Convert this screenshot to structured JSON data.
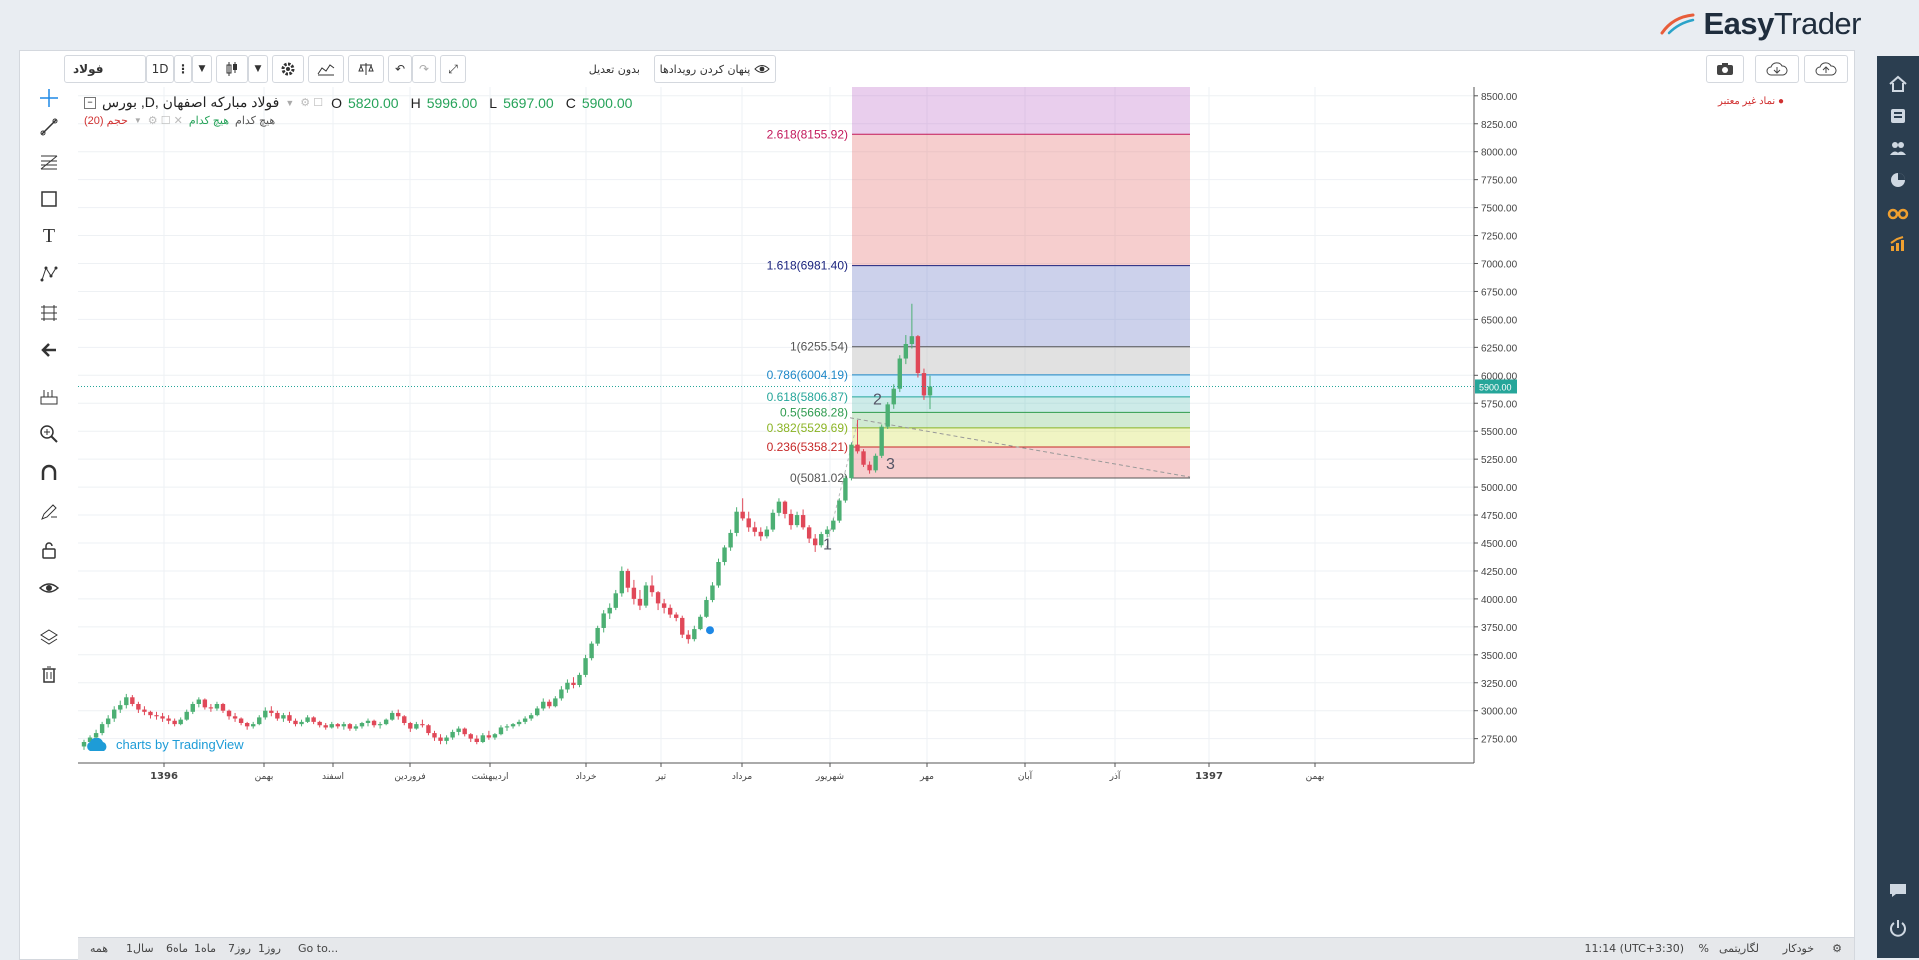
{
  "brand": {
    "name_bold": "Easy",
    "name_light": "Trader"
  },
  "toolbar": {
    "symbol": "فولاد",
    "interval": "1D",
    "hide_events_label": "پنهان کردن رویدادها",
    "adjust_label": "بدون تعدیل"
  },
  "legend": {
    "title": "بورس ,D, فولاد مبارکه اصفهان",
    "o_label": "O",
    "o_value": "5820.00",
    "h_label": "H",
    "h_value": "5996.00",
    "l_label": "L",
    "l_value": "5697.00",
    "c_label": "C",
    "c_value": "5900.00",
    "volume_label": "حجم (20)",
    "volume_values": "هیچ کدام",
    "volume_values2": "هیچ کدام",
    "invalid_symbol": "نماد غیر معتبر"
  },
  "fib_levels": [
    {
      "label": "2.618(8155.92)",
      "value": 8155.92,
      "color": "#c2185b"
    },
    {
      "label": "1.618(6981.40)",
      "value": 6981.4,
      "color": "#1a237e"
    },
    {
      "label": "1(6255.54)",
      "value": 6255.54,
      "color": "#555555"
    },
    {
      "label": "0.786(6004.19)",
      "value": 6004.19,
      "color": "#1e88c8"
    },
    {
      "label": "0.618(5806.87)",
      "value": 5806.87,
      "color": "#26a69a"
    },
    {
      "label": "0.5(5668.28)",
      "value": 5668.28,
      "color": "#2e9b4e"
    },
    {
      "label": "0.382(5529.69)",
      "value": 5529.69,
      "color": "#8bb424"
    },
    {
      "label": "0.236(5358.21)",
      "value": 5358.21,
      "color": "#c62828"
    },
    {
      "label": "0(5081.02)",
      "value": 5081.02,
      "color": "#555555"
    }
  ],
  "wave_labels": [
    "1",
    "2",
    "3"
  ],
  "price_axis": [
    "8500.00",
    "8250.00",
    "8000.00",
    "7750.00",
    "7500.00",
    "7250.00",
    "7000.00",
    "6750.00",
    "6500.00",
    "6250.00",
    "6000.00",
    "5750.00",
    "5500.00",
    "5250.00",
    "5000.00",
    "4750.00",
    "4500.00",
    "4250.00",
    "4000.00",
    "3750.00",
    "3500.00",
    "3250.00",
    "3000.00",
    "2750.00"
  ],
  "last_price": "5900.00",
  "time_axis": [
    "1396",
    "بهمن",
    "اسفند",
    "فروردین",
    "اردیبهشت",
    "خرداد",
    "تیر",
    "مرداد",
    "شهریور",
    "مهر",
    "آبان",
    "آذر",
    "1397",
    "بهمن"
  ],
  "watermark": "charts by TradingView",
  "status": {
    "ranges": [
      "همه",
      "1سال",
      "6ماه",
      "1ماه",
      "7روز",
      "1روز"
    ],
    "goto": "Go to...",
    "time": "11:14 (UTC+3:30)",
    "percent": "%",
    "log": "لگاریتمی",
    "auto": "خودکار"
  },
  "candles": [
    [
      2680,
      2740,
      2650,
      2720
    ],
    [
      2720,
      2780,
      2700,
      2760
    ],
    [
      2760,
      2830,
      2740,
      2800
    ],
    [
      2800,
      2900,
      2780,
      2880
    ],
    [
      2880,
      2960,
      2850,
      2930
    ],
    [
      2930,
      3040,
      2900,
      3010
    ],
    [
      3010,
      3090,
      2980,
      3050
    ],
    [
      3050,
      3150,
      3020,
      3120
    ],
    [
      3120,
      3140,
      3040,
      3060
    ],
    [
      3060,
      3080,
      2980,
      3010
    ],
    [
      3010,
      3040,
      2960,
      2990
    ],
    [
      2990,
      3000,
      2930,
      2960
    ],
    [
      2960,
      2990,
      2920,
      2950
    ],
    [
      2950,
      2980,
      2900,
      2930
    ],
    [
      2930,
      2960,
      2880,
      2910
    ],
    [
      2910,
      2930,
      2860,
      2880
    ],
    [
      2880,
      2940,
      2870,
      2920
    ],
    [
      2920,
      3010,
      2910,
      2990
    ],
    [
      2990,
      3080,
      2970,
      3060
    ],
    [
      3060,
      3120,
      3030,
      3100
    ],
    [
      3100,
      3110,
      3010,
      3030
    ],
    [
      3030,
      3060,
      2990,
      3020
    ],
    [
      3020,
      3080,
      3000,
      3060
    ],
    [
      3060,
      3070,
      2980,
      3000
    ],
    [
      3000,
      3010,
      2920,
      2950
    ],
    [
      2950,
      2980,
      2900,
      2930
    ],
    [
      2930,
      2940,
      2870,
      2890
    ],
    [
      2890,
      2900,
      2830,
      2860
    ],
    [
      2860,
      2900,
      2840,
      2880
    ],
    [
      2880,
      2960,
      2870,
      2940
    ],
    [
      2940,
      3030,
      2920,
      3000
    ],
    [
      3000,
      3040,
      2950,
      2980
    ],
    [
      2980,
      3000,
      2910,
      2930
    ],
    [
      2930,
      2980,
      2900,
      2960
    ],
    [
      2960,
      2990,
      2890,
      2910
    ],
    [
      2910,
      2930,
      2860,
      2880
    ],
    [
      2880,
      2920,
      2860,
      2900
    ],
    [
      2900,
      2960,
      2890,
      2940
    ],
    [
      2940,
      2950,
      2880,
      2900
    ],
    [
      2900,
      2910,
      2850,
      2870
    ],
    [
      2870,
      2890,
      2830,
      2850
    ],
    [
      2850,
      2900,
      2840,
      2880
    ],
    [
      2880,
      2890,
      2840,
      2860
    ],
    [
      2860,
      2900,
      2830,
      2880
    ],
    [
      2880,
      2890,
      2820,
      2840
    ],
    [
      2840,
      2880,
      2820,
      2860
    ],
    [
      2860,
      2900,
      2840,
      2890
    ],
    [
      2890,
      2930,
      2860,
      2910
    ],
    [
      2910,
      2920,
      2850,
      2870
    ],
    [
      2870,
      2900,
      2840,
      2880
    ],
    [
      2880,
      2930,
      2870,
      2920
    ],
    [
      2920,
      3000,
      2910,
      2980
    ],
    [
      2980,
      3010,
      2920,
      2950
    ],
    [
      2950,
      2960,
      2870,
      2890
    ],
    [
      2890,
      2900,
      2810,
      2840
    ],
    [
      2840,
      2900,
      2830,
      2880
    ],
    [
      2880,
      2920,
      2850,
      2870
    ],
    [
      2870,
      2880,
      2780,
      2800
    ],
    [
      2800,
      2820,
      2730,
      2760
    ],
    [
      2760,
      2790,
      2700,
      2730
    ],
    [
      2730,
      2780,
      2700,
      2760
    ],
    [
      2760,
      2830,
      2740,
      2810
    ],
    [
      2810,
      2860,
      2780,
      2840
    ],
    [
      2840,
      2850,
      2770,
      2790
    ],
    [
      2790,
      2800,
      2720,
      2750
    ],
    [
      2750,
      2780,
      2700,
      2720
    ],
    [
      2720,
      2800,
      2710,
      2780
    ],
    [
      2780,
      2820,
      2740,
      2760
    ],
    [
      2760,
      2800,
      2740,
      2790
    ],
    [
      2790,
      2870,
      2780,
      2850
    ],
    [
      2850,
      2880,
      2820,
      2860
    ],
    [
      2860,
      2890,
      2840,
      2880
    ],
    [
      2880,
      2920,
      2860,
      2900
    ],
    [
      2900,
      2950,
      2880,
      2930
    ],
    [
      2930,
      2980,
      2910,
      2960
    ],
    [
      2960,
      3040,
      2950,
      3020
    ],
    [
      3020,
      3110,
      3000,
      3080
    ],
    [
      3080,
      3100,
      3020,
      3040
    ],
    [
      3040,
      3130,
      3030,
      3110
    ],
    [
      3110,
      3220,
      3090,
      3190
    ],
    [
      3190,
      3280,
      3160,
      3250
    ],
    [
      3250,
      3300,
      3200,
      3230
    ],
    [
      3230,
      3340,
      3210,
      3320
    ],
    [
      3320,
      3500,
      3300,
      3470
    ],
    [
      3470,
      3620,
      3450,
      3600
    ],
    [
      3600,
      3760,
      3580,
      3740
    ],
    [
      3740,
      3900,
      3700,
      3870
    ],
    [
      3870,
      3960,
      3820,
      3920
    ],
    [
      3920,
      4080,
      3900,
      4050
    ],
    [
      4050,
      4290,
      4020,
      4250
    ],
    [
      4250,
      4270,
      4060,
      4100
    ],
    [
      4100,
      4170,
      3950,
      4000
    ],
    [
      4000,
      4080,
      3900,
      3940
    ],
    [
      3940,
      4150,
      3920,
      4120
    ],
    [
      4120,
      4210,
      4020,
      4060
    ],
    [
      4060,
      4070,
      3900,
      3960
    ],
    [
      3960,
      4000,
      3870,
      3920
    ],
    [
      3920,
      3950,
      3830,
      3860
    ],
    [
      3860,
      3880,
      3800,
      3830
    ],
    [
      3830,
      3850,
      3650,
      3680
    ],
    [
      3680,
      3720,
      3600,
      3640
    ],
    [
      3640,
      3760,
      3620,
      3730
    ],
    [
      3730,
      3860,
      3720,
      3840
    ],
    [
      3840,
      4020,
      3830,
      3990
    ],
    [
      3990,
      4150,
      3970,
      4120
    ],
    [
      4120,
      4360,
      4100,
      4330
    ],
    [
      4330,
      4480,
      4300,
      4460
    ],
    [
      4460,
      4620,
      4430,
      4590
    ],
    [
      4590,
      4820,
      4560,
      4780
    ],
    [
      4780,
      4900,
      4700,
      4720
    ],
    [
      4720,
      4780,
      4600,
      4640
    ],
    [
      4640,
      4690,
      4560,
      4600
    ],
    [
      4600,
      4640,
      4520,
      4560
    ],
    [
      4560,
      4650,
      4540,
      4620
    ],
    [
      4620,
      4800,
      4600,
      4770
    ],
    [
      4770,
      4900,
      4740,
      4870
    ],
    [
      4870,
      4880,
      4720,
      4760
    ],
    [
      4760,
      4800,
      4620,
      4660
    ],
    [
      4660,
      4780,
      4640,
      4750
    ],
    [
      4750,
      4800,
      4620,
      4640
    ],
    [
      4640,
      4660,
      4500,
      4540
    ],
    [
      4540,
      4580,
      4420,
      4480
    ],
    [
      4480,
      4600,
      4460,
      4580
    ],
    [
      4580,
      4650,
      4550,
      4620
    ],
    [
      4620,
      4720,
      4600,
      4700
    ],
    [
      4700,
      4900,
      4680,
      4880
    ],
    [
      4880,
      5100,
      4860,
      5080
    ],
    [
      5080,
      5400,
      5060,
      5380
    ],
    [
      5380,
      5600,
      5300,
      5320
    ],
    [
      5320,
      5340,
      5180,
      5200
    ],
    [
      5200,
      5230,
      5120,
      5150
    ],
    [
      5150,
      5300,
      5130,
      5280
    ],
    [
      5280,
      5560,
      5260,
      5540
    ],
    [
      5540,
      5760,
      5520,
      5740
    ],
    [
      5740,
      5920,
      5700,
      5880
    ],
    [
      5880,
      6180,
      5850,
      6150
    ],
    [
      6150,
      6360,
      6100,
      6280
    ],
    [
      6280,
      6640,
      6240,
      6350
    ],
    [
      6350,
      6360,
      5980,
      6020
    ],
    [
      6020,
      6060,
      5780,
      5820
    ],
    [
      5820,
      5996,
      5697,
      5900
    ]
  ]
}
